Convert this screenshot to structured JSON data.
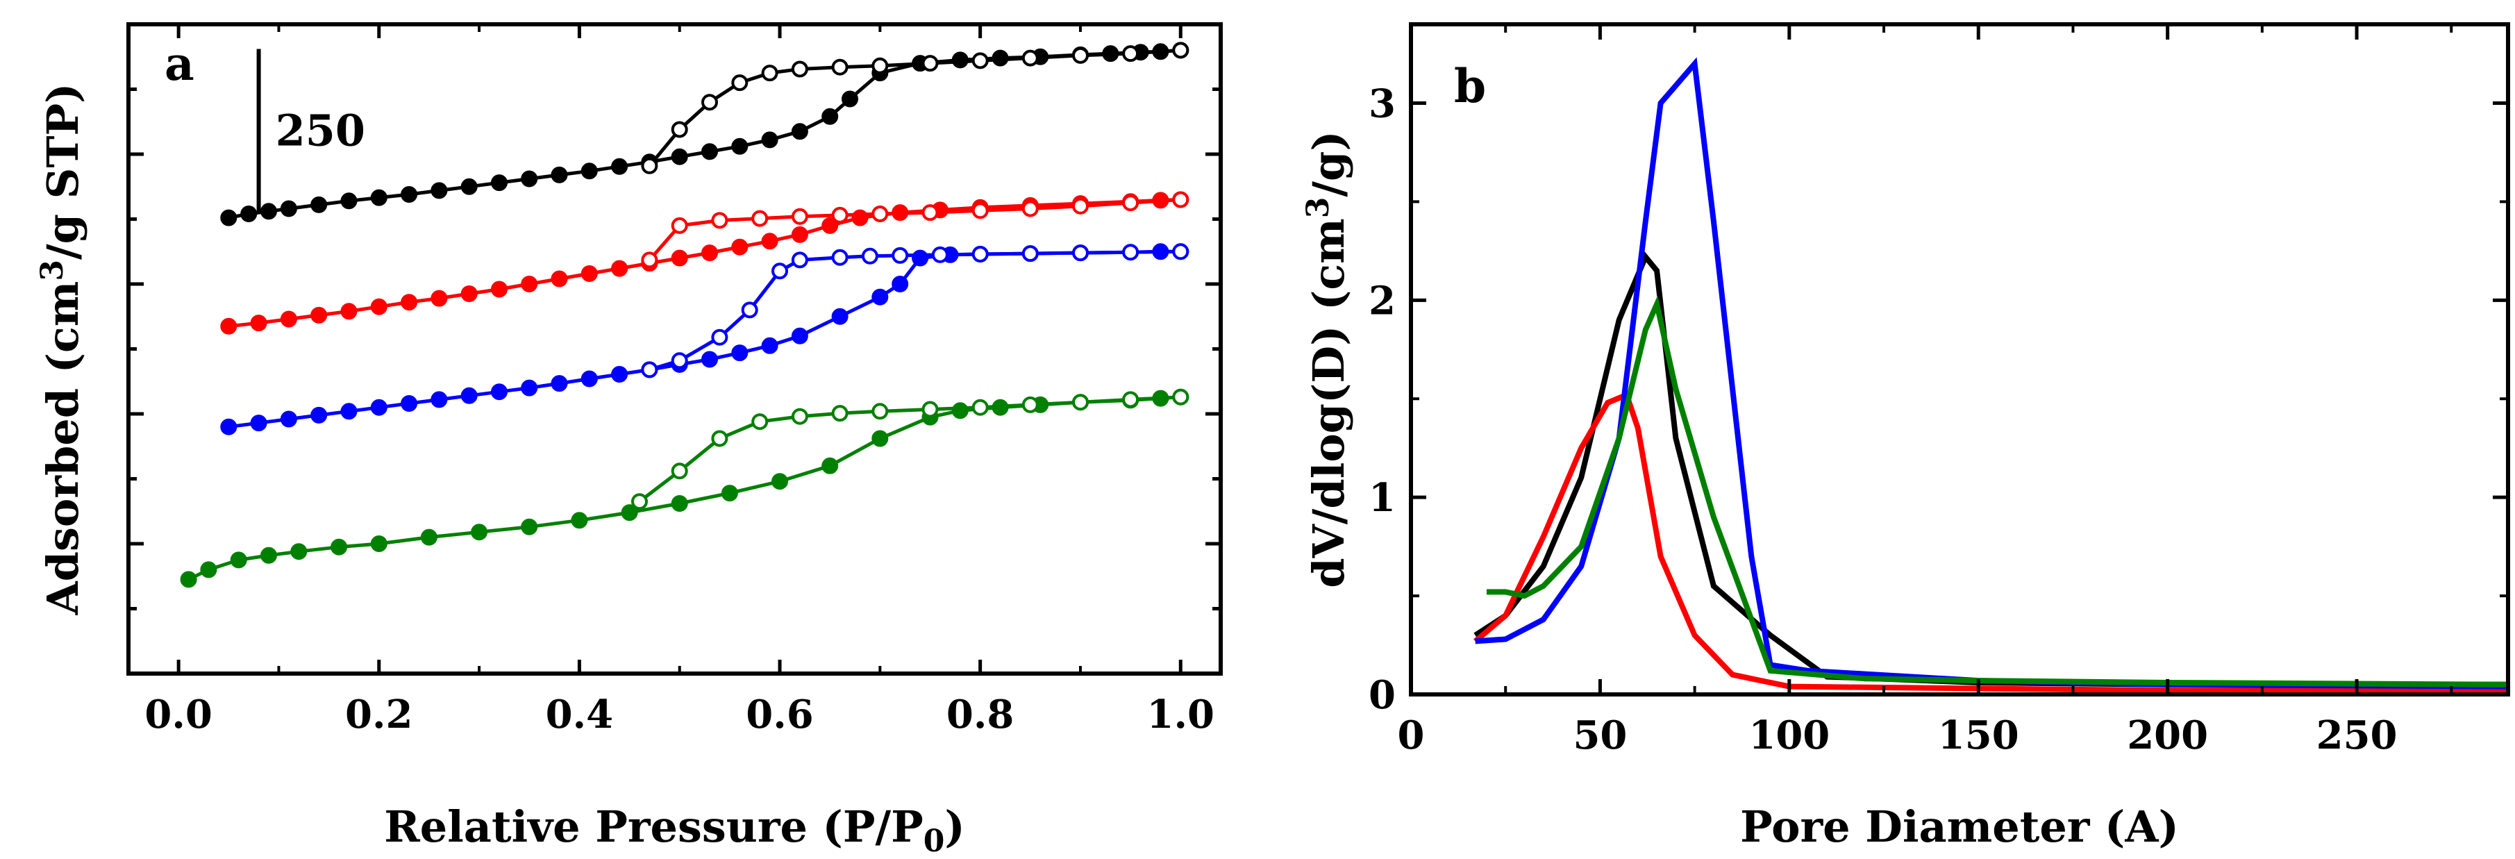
{
  "chart_data": [
    {
      "type": "line",
      "panel_label": "a",
      "xlabel": "Relative Pressure (P/P",
      "xlabel_sub": "0",
      "xlabel_end": ")",
      "ylabel_pre": "Adsorbed (cm",
      "ylabel_sup": "3",
      "ylabel_post": "/g STP)",
      "xlim": [
        -0.05,
        1.04
      ],
      "x_ticks": [
        0.0,
        0.2,
        0.4,
        0.6,
        0.8,
        1.0
      ],
      "x_tick_labels": [
        "0.0",
        "0.2",
        "0.4",
        "0.6",
        "0.8",
        "1.0"
      ],
      "ylim": [
        0,
        1000
      ],
      "y_minor_ticks": [
        100,
        200,
        300,
        400,
        500,
        600,
        700,
        800,
        900
      ],
      "y_tick_labels": [],
      "scale_bar": {
        "label": "250",
        "value": 250,
        "x": 0.08,
        "y_from": 712,
        "y_to": 962
      },
      "series": [
        {
          "name": "black",
          "color": "#000000",
          "adsorption": {
            "x": [
              0.05,
              0.07,
              0.09,
              0.11,
              0.14,
              0.17,
              0.2,
              0.23,
              0.26,
              0.29,
              0.32,
              0.35,
              0.38,
              0.41,
              0.44,
              0.47,
              0.5,
              0.53,
              0.56,
              0.59,
              0.62,
              0.65,
              0.67,
              0.7,
              0.74,
              0.78,
              0.82,
              0.86,
              0.9,
              0.93,
              0.96,
              0.98,
              1.0
            ],
            "y": [
              702,
              708,
              712,
              716,
              722,
              728,
              733,
              738,
              744,
              750,
              756,
              762,
              768,
              774,
              781,
              788,
              796,
              804,
              812,
              822,
              835,
              858,
              885,
              925,
              940,
              945,
              948,
              950,
              953,
              955,
              957,
              958,
              960
            ]
          },
          "desorption": {
            "x": [
              1.0,
              0.95,
              0.9,
              0.85,
              0.8,
              0.75,
              0.7,
              0.66,
              0.62,
              0.59,
              0.56,
              0.53,
              0.5,
              0.47
            ],
            "y": [
              960,
              955,
              952,
              948,
              944,
              940,
              936,
              934,
              931,
              925,
              910,
              880,
              838,
              782
            ]
          }
        },
        {
          "name": "red",
          "color": "#ff0000",
          "adsorption": {
            "x": [
              0.05,
              0.08,
              0.11,
              0.14,
              0.17,
              0.2,
              0.23,
              0.26,
              0.29,
              0.32,
              0.35,
              0.38,
              0.41,
              0.44,
              0.47,
              0.5,
              0.53,
              0.56,
              0.59,
              0.62,
              0.65,
              0.68,
              0.72,
              0.76,
              0.8,
              0.85,
              0.9,
              0.95,
              0.98,
              1.0
            ],
            "y": [
              535,
              540,
              546,
              552,
              558,
              565,
              572,
              578,
              585,
              592,
              600,
              608,
              616,
              624,
              632,
              640,
              648,
              657,
              666,
              676,
              690,
              702,
              710,
              714,
              718,
              721,
              724,
              727,
              729,
              730
            ]
          },
          "desorption": {
            "x": [
              1.0,
              0.95,
              0.9,
              0.85,
              0.8,
              0.75,
              0.7,
              0.66,
              0.62,
              0.58,
              0.54,
              0.5,
              0.47
            ],
            "y": [
              730,
              725,
              720,
              716,
              713,
              710,
              708,
              706,
              704,
              701,
              698,
              690,
              637
            ]
          }
        },
        {
          "name": "blue",
          "color": "#0000ff",
          "adsorption": {
            "x": [
              0.05,
              0.08,
              0.11,
              0.14,
              0.17,
              0.2,
              0.23,
              0.26,
              0.29,
              0.32,
              0.35,
              0.38,
              0.41,
              0.44,
              0.47,
              0.5,
              0.53,
              0.56,
              0.59,
              0.62,
              0.66,
              0.7,
              0.72,
              0.74,
              0.77,
              0.8,
              0.85,
              0.9,
              0.95,
              0.98,
              1.0
            ],
            "y": [
              380,
              386,
              392,
              398,
              404,
              410,
              416,
              422,
              428,
              434,
              440,
              447,
              454,
              461,
              468,
              476,
              484,
              494,
              505,
              520,
              550,
              580,
              600,
              640,
              645,
              646,
              647,
              648,
              649,
              650,
              650
            ]
          },
          "desorption": {
            "x": [
              1.0,
              0.95,
              0.9,
              0.85,
              0.8,
              0.76,
              0.72,
              0.69,
              0.66,
              0.62,
              0.6,
              0.57,
              0.54,
              0.5,
              0.47
            ],
            "y": [
              650,
              649,
              648,
              647,
              646,
              645,
              644,
              643,
              641,
              637,
              620,
              560,
              518,
              482,
              468
            ]
          }
        },
        {
          "name": "green",
          "color": "#008000",
          "adsorption": {
            "x": [
              0.01,
              0.03,
              0.06,
              0.09,
              0.12,
              0.16,
              0.2,
              0.25,
              0.3,
              0.35,
              0.4,
              0.45,
              0.5,
              0.55,
              0.6,
              0.65,
              0.7,
              0.75,
              0.78,
              0.82,
              0.86,
              0.9,
              0.95,
              0.98,
              1.0
            ],
            "y": [
              145,
              160,
              175,
              182,
              188,
              195,
              200,
              210,
              218,
              226,
              236,
              248,
              262,
              278,
              296,
              320,
              362,
              395,
              405,
              410,
              414,
              418,
              421,
              424,
              426
            ]
          },
          "desorption": {
            "x": [
              1.0,
              0.95,
              0.9,
              0.85,
              0.8,
              0.75,
              0.7,
              0.66,
              0.62,
              0.58,
              0.54,
              0.5,
              0.46
            ],
            "y": [
              426,
              422,
              418,
              414,
              410,
              407,
              404,
              401,
              396,
              388,
              362,
              312,
              265
            ]
          }
        }
      ]
    },
    {
      "type": "line",
      "panel_label": "b",
      "xlabel": "Pore Diameter (A)",
      "ylabel_pre": "dV/dlog(D) (cm",
      "ylabel_sup": "3",
      "ylabel_post": "/g)",
      "xlim": [
        0,
        290
      ],
      "x_ticks": [
        0,
        50,
        100,
        150,
        200,
        250
      ],
      "x_tick_labels": [
        "0",
        "50",
        "100",
        "150",
        "200",
        "250"
      ],
      "x_minor_ticks": [
        25,
        75,
        125,
        175,
        225,
        275
      ],
      "ylim": [
        0,
        3.4
      ],
      "y_ticks": [
        0,
        1,
        2,
        3
      ],
      "y_tick_labels": [
        "0",
        "1",
        "2",
        "3"
      ],
      "y_minor_ticks": [
        0.5,
        1.5,
        2.5
      ],
      "series": [
        {
          "name": "black",
          "color": "#000000",
          "x": [
            17,
            25,
            35,
            45,
            55,
            62,
            65,
            70,
            80,
            95,
            110,
            150,
            200,
            290
          ],
          "y": [
            0.3,
            0.4,
            0.65,
            1.1,
            1.9,
            2.22,
            2.15,
            1.3,
            0.55,
            0.3,
            0.09,
            0.06,
            0.05,
            0.05
          ]
        },
        {
          "name": "red",
          "color": "#ff0000",
          "x": [
            17,
            25,
            35,
            45,
            52,
            57,
            60,
            66,
            75,
            85,
            100,
            150,
            200,
            290
          ],
          "y": [
            0.27,
            0.4,
            0.8,
            1.25,
            1.48,
            1.52,
            1.35,
            0.7,
            0.3,
            0.1,
            0.04,
            0.03,
            0.02,
            0.02
          ]
        },
        {
          "name": "blue",
          "color": "#0000ff",
          "x": [
            17,
            25,
            35,
            45,
            55,
            62,
            66,
            75,
            80,
            90,
            95,
            105,
            150,
            200,
            290
          ],
          "y": [
            0.27,
            0.28,
            0.38,
            0.65,
            1.3,
            2.4,
            3.0,
            3.2,
            2.4,
            0.7,
            0.15,
            0.12,
            0.07,
            0.05,
            0.04
          ]
        },
        {
          "name": "green",
          "color": "#008000",
          "x": [
            20,
            25,
            30,
            35,
            45,
            55,
            62,
            65,
            70,
            80,
            95,
            120,
            150,
            200,
            290
          ],
          "y": [
            0.52,
            0.52,
            0.5,
            0.55,
            0.75,
            1.3,
            1.85,
            1.98,
            1.55,
            0.9,
            0.12,
            0.08,
            0.07,
            0.06,
            0.05
          ]
        }
      ]
    }
  ]
}
